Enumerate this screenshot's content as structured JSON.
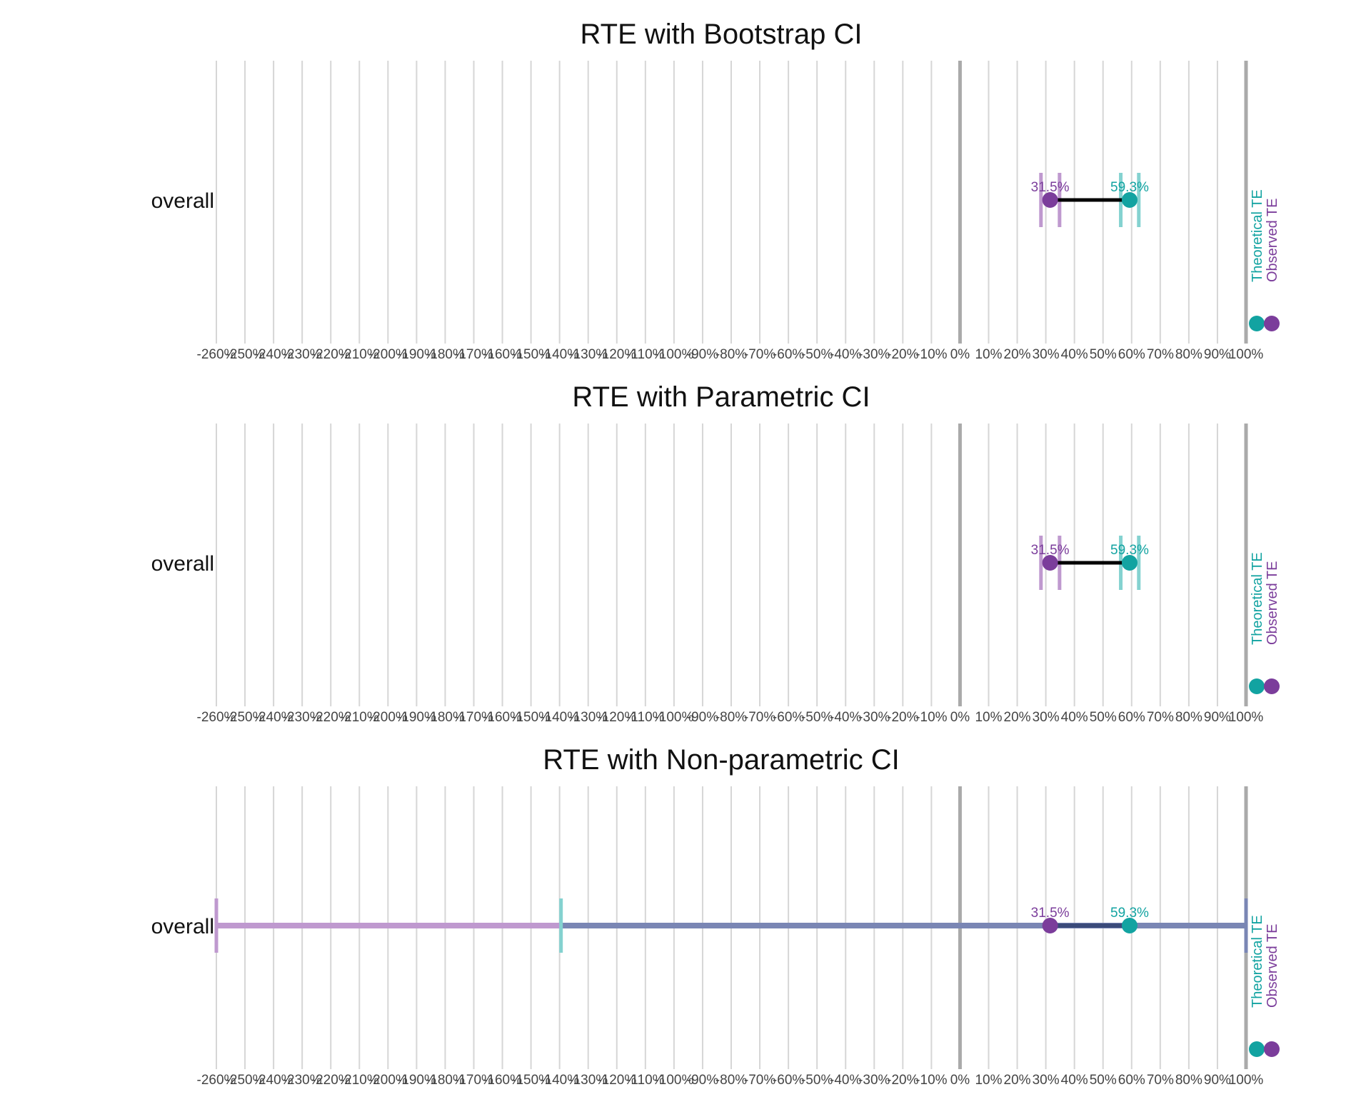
{
  "colors": {
    "theoretical": "#12A3A1",
    "observed": "#7B3D9B",
    "theoretical_ci": "#84D2D0",
    "observed_ci": "#BF99CF",
    "overlap_ci": "#7A86B4",
    "grid": "#D6D6D6",
    "reference": "#AAAAAA"
  },
  "chart_data": [
    {
      "type": "dot-interval",
      "title": "RTE with Bootstrap CI",
      "row": "overall",
      "xlim": [
        -260,
        100
      ],
      "ticks": [
        -260,
        -250,
        -240,
        -230,
        -220,
        -210,
        -200,
        -190,
        -180,
        -170,
        -160,
        -150,
        -140,
        -130,
        -120,
        -110,
        -100,
        -90,
        -80,
        -70,
        -60,
        -50,
        -40,
        -30,
        -20,
        -10,
        0,
        10,
        20,
        30,
        40,
        50,
        60,
        70,
        80,
        90,
        100
      ],
      "tick_labels": [
        "-260%",
        "-250%",
        "-240%",
        "-230%",
        "-220%",
        "-210%",
        "-200%",
        "-190%",
        "-180%",
        "-170%",
        "-160%",
        "-150%",
        "-140%",
        "-130%",
        "-120%",
        "-110%",
        "-100%",
        "-90%",
        "-80%",
        "-70%",
        "-60%",
        "-50%",
        "-40%",
        "-30%",
        "-20%",
        "-10%",
        "0%",
        "10%",
        "20%",
        "30%",
        "40%",
        "50%",
        "60%",
        "70%",
        "80%",
        "90%",
        "100%"
      ],
      "reference_lines": [
        0,
        100
      ],
      "observed": {
        "value": 31.5,
        "label": "31.5%",
        "ci": [
          28.3,
          34.8
        ]
      },
      "theoretical": {
        "value": 59.3,
        "label": "59.3%",
        "ci": [
          56.2,
          62.5
        ]
      },
      "legend": [
        "Theoretical TE",
        "Observed TE"
      ]
    },
    {
      "type": "dot-interval",
      "title": "RTE with Parametric CI",
      "row": "overall",
      "xlim": [
        -260,
        100
      ],
      "ticks": [
        -260,
        -250,
        -240,
        -230,
        -220,
        -210,
        -200,
        -190,
        -180,
        -170,
        -160,
        -150,
        -140,
        -130,
        -120,
        -110,
        -100,
        -90,
        -80,
        -70,
        -60,
        -50,
        -40,
        -30,
        -20,
        -10,
        0,
        10,
        20,
        30,
        40,
        50,
        60,
        70,
        80,
        90,
        100
      ],
      "tick_labels": [
        "-260%",
        "-250%",
        "-240%",
        "-230%",
        "-220%",
        "-210%",
        "-200%",
        "-190%",
        "-180%",
        "-170%",
        "-160%",
        "-150%",
        "-140%",
        "-130%",
        "-120%",
        "-110%",
        "-100%",
        "-90%",
        "-80%",
        "-70%",
        "-60%",
        "-50%",
        "-40%",
        "-30%",
        "-20%",
        "-10%",
        "0%",
        "10%",
        "20%",
        "30%",
        "40%",
        "50%",
        "60%",
        "70%",
        "80%",
        "90%",
        "100%"
      ],
      "reference_lines": [
        0,
        100
      ],
      "observed": {
        "value": 31.5,
        "label": "31.5%",
        "ci": [
          28.3,
          34.8
        ]
      },
      "theoretical": {
        "value": 59.3,
        "label": "59.3%",
        "ci": [
          56.2,
          62.5
        ]
      },
      "legend": [
        "Theoretical TE",
        "Observed TE"
      ]
    },
    {
      "type": "dot-interval",
      "title": "RTE with Non-parametric CI",
      "row": "overall",
      "xlim": [
        -260,
        100
      ],
      "ticks": [
        -260,
        -250,
        -240,
        -230,
        -220,
        -210,
        -200,
        -190,
        -180,
        -170,
        -160,
        -150,
        -140,
        -130,
        -120,
        -110,
        -100,
        -90,
        -80,
        -70,
        -60,
        -50,
        -40,
        -30,
        -20,
        -10,
        0,
        10,
        20,
        30,
        40,
        50,
        60,
        70,
        80,
        90,
        100
      ],
      "tick_labels": [
        "-260%",
        "-250%",
        "-240%",
        "-230%",
        "-220%",
        "-210%",
        "-200%",
        "-190%",
        "-180%",
        "-170%",
        "-160%",
        "-150%",
        "-140%",
        "-130%",
        "-120%",
        "-110%",
        "-100%",
        "-90%",
        "-80%",
        "-70%",
        "-60%",
        "-50%",
        "-40%",
        "-30%",
        "-20%",
        "-10%",
        "0%",
        "10%",
        "20%",
        "30%",
        "40%",
        "50%",
        "60%",
        "70%",
        "80%",
        "90%",
        "100%"
      ],
      "reference_lines": [
        0,
        100
      ],
      "observed": {
        "value": 31.5,
        "label": "31.5%",
        "ci": [
          -260,
          100
        ]
      },
      "theoretical": {
        "value": 59.3,
        "label": "59.3%",
        "ci": [
          -139.5,
          100
        ]
      },
      "legend": [
        "Theoretical TE",
        "Observed TE"
      ]
    }
  ]
}
